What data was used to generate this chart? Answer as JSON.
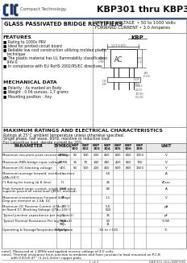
{
  "title": "KBP301 thru KBP308",
  "company": "Compact Technology",
  "part_type": "GLASS PASSIVATED BRIDGE RECTIFIERS",
  "reverse_voltage_1": "REVERSE VOLTAGE  • 50 to 1000 Volts",
  "forward_current_1": "FORWARD CURRENT • 3.0 Amperes",
  "features_title": "FEATURES",
  "features": [
    "■ Rating to 1000v PRV",
    "■ Ideal for printed circuit board",
    "■ Reliable low cost construction utilizing molded plastic",
    "   technique",
    "■ The plastic material has UL flammability classification",
    "   94V-0",
    "■ In compliance with EU RoHS 2002/95/EC directives"
  ],
  "mech_title": "MECHANICAL DATA",
  "mech": [
    "■ Polarity : As marked on Body",
    "■ Weight : 0.06 ounces, 1.7 grams",
    "■ Mounting position : Any"
  ],
  "max_ratings_title": "MAXIMUM RATINGS AND ELECTRICAL CHARACTERISTICS",
  "max_ratings_sub": [
    "Ratings at 25°C ambient temperature unless otherwise specified.",
    "Single phase, half wave, 60Hz, resistive or inductive load.",
    "For capacitive load, derate current by 20%."
  ],
  "col_headers": [
    "PARAMETER",
    "SYMBOL",
    "KBP\n301",
    "KBP\n302",
    "KBP\n303",
    "KBP\n304",
    "KBP\n305",
    "KBP\n306",
    "KBP\n308",
    "UNIT"
  ],
  "table_rows": [
    [
      "Maximum recurrent peak reverse voltage",
      "VRRM",
      "50",
      "100",
      "200",
      "400",
      "600",
      "800",
      "1000",
      "V"
    ],
    [
      "Maximum RMS bridge input voltage",
      "VRMS",
      "35",
      "70",
      "140",
      "280",
      "420",
      "560",
      "700",
      "V"
    ],
    [
      "Maximum DC blocking voltage",
      "VDC",
      "50",
      "100",
      "200",
      "400",
      "600",
      "800",
      "1000",
      "V"
    ],
    [
      "Maximum average forward  rectified current\n@TA=50°C",
      "Io",
      "",
      "",
      "",
      "3.0",
      "",
      "",
      "",
      "A"
    ],
    [
      "I²t Rating for fusing (≤ 8.3ms)",
      "I²t",
      "",
      "",
      "",
      "26",
      "",
      "",
      "",
      "A²sec"
    ],
    [
      "Peak forward surge current, single sine-wave\nsuperim posed on rated load (JEDEC method)",
      "IFSM",
      "",
      "",
      "",
      "80",
      "",
      "",
      "",
      "A"
    ],
    [
      "Maximum instantaneous Forward Voltage\nDrop per element at 1.5A  DC",
      "VF",
      "",
      "",
      "",
      "1.1",
      "",
      "",
      "",
      "V"
    ],
    [
      "Maximum DC Reverse Current @TA=25°C\nat Rated DC Blocking Voltage @TA=100°C",
      "IR",
      "",
      "",
      "",
      "5.0\n500",
      "",
      "",
      "",
      "μA"
    ],
    [
      "Typical junction capacitance per leg(note1)",
      "Cj",
      "",
      "",
      "",
      "25",
      "",
      "",
      "",
      "pF"
    ],
    [
      "Typical Thermal Resistance Per leg (note2)",
      "RθJA\nRθJL",
      "",
      "",
      "",
      "50\n11",
      "",
      "",
      "",
      "°C/W"
    ],
    [
      "Operating & StorageTemperature Range",
      "Tstg&Tstore",
      "",
      "",
      "",
      "-55 to +130",
      "",
      "",
      "",
      "°C"
    ]
  ],
  "note1": "note1. Measured at 1.0MHz and applied reverse voltage of 4.0 volts.",
  "note2": "note2. Thermal resistance from junction to ambient and from junction to lead mounted on P.C.B",
  "note2b": "         with 0.47x0.47'' (1.2x1.2mm) copper pads.",
  "footer_left": "1 of 2",
  "footer_right": "KBP301 thru KBP308",
  "blue": "#1c3a6e",
  "gray": "#888888",
  "light_gray": "#cccccc",
  "header_bg": "#e8e8e8"
}
